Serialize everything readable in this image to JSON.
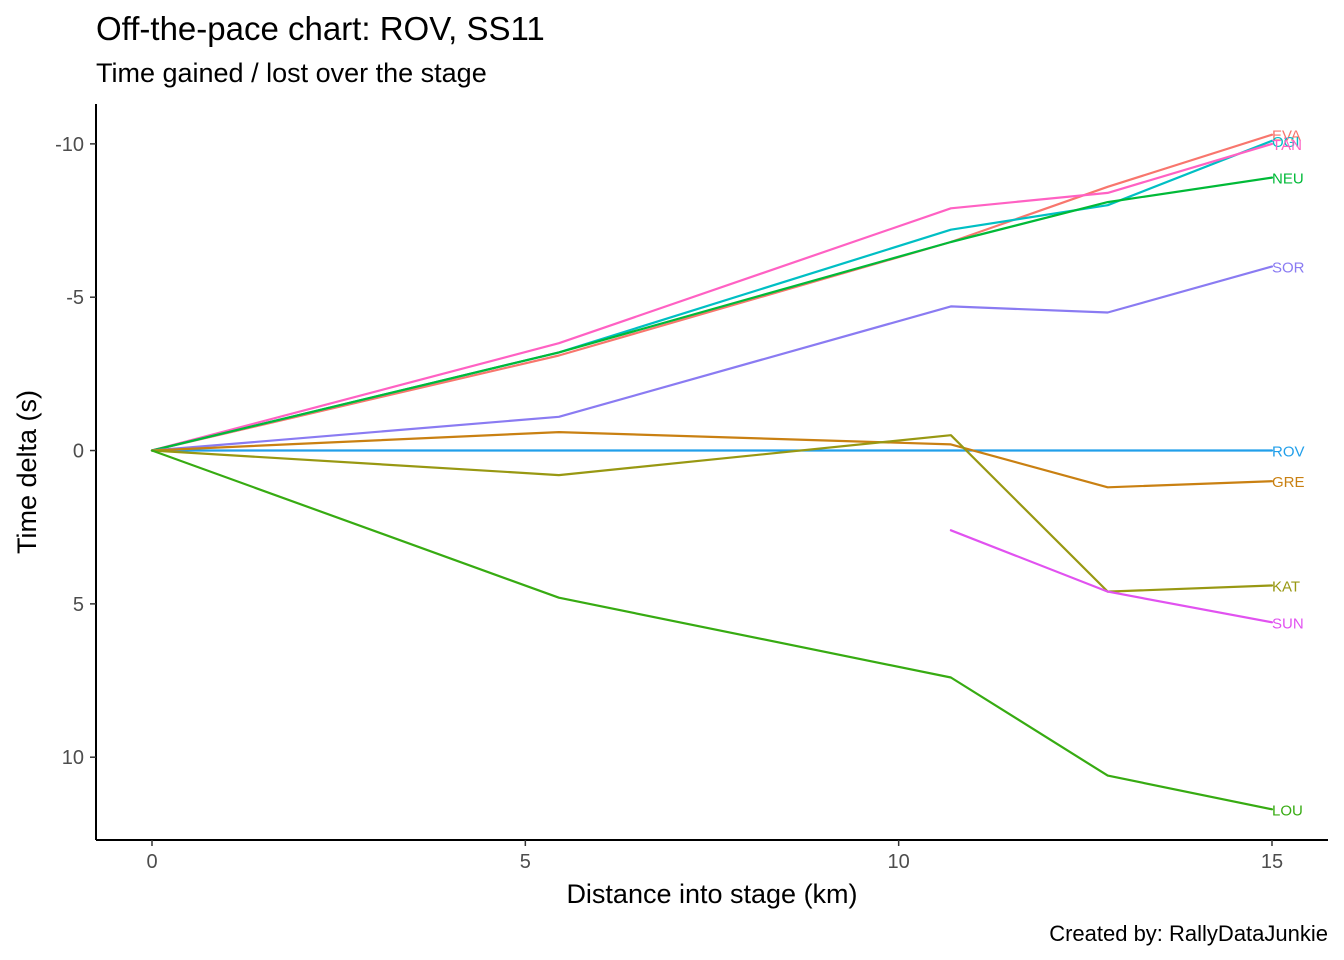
{
  "chart_data": {
    "type": "line",
    "title": "Off-the-pace chart: ROV, SS11",
    "subtitle": "Time gained / lost over the stage",
    "caption": "Created by: RallyDataJunkie",
    "xlabel": "Distance into stage (km)",
    "ylabel": "Time delta (s)",
    "xlim": [
      -0.75,
      15.75
    ],
    "ylim": [
      -11.3,
      12.7
    ],
    "y_reversed": true,
    "x_ticks": [
      0,
      5,
      10,
      15
    ],
    "y_ticks": [
      -10,
      -5,
      0,
      5,
      10
    ],
    "grid": false,
    "legend": "none (series labelled at line ends)",
    "series": [
      {
        "name": "EVA",
        "color": "#F8766D",
        "points": [
          [
            0,
            0
          ],
          [
            5.45,
            -3.1
          ],
          [
            10.7,
            -6.8
          ],
          [
            12.8,
            -8.6
          ],
          [
            15,
            -10.3
          ]
        ]
      },
      {
        "name": "OGI",
        "color": "#00BFC4",
        "points": [
          [
            0,
            0
          ],
          [
            5.45,
            -3.2
          ],
          [
            10.7,
            -7.2
          ],
          [
            12.8,
            -8.0
          ],
          [
            15,
            -10.1
          ]
        ]
      },
      {
        "name": "TÄN",
        "color": "#FF61C3",
        "points": [
          [
            0,
            0
          ],
          [
            5.45,
            -3.5
          ],
          [
            10.7,
            -7.9
          ],
          [
            12.8,
            -8.4
          ],
          [
            15,
            -10.0
          ]
        ]
      },
      {
        "name": "NEU",
        "color": "#00BA38",
        "points": [
          [
            0,
            0
          ],
          [
            5.45,
            -3.2
          ],
          [
            10.7,
            -6.8
          ],
          [
            12.8,
            -8.1
          ],
          [
            15,
            -8.9
          ]
        ]
      },
      {
        "name": "SOR",
        "color": "#8A7BF2",
        "points": [
          [
            0,
            0
          ],
          [
            5.45,
            -1.1
          ],
          [
            10.7,
            -4.7
          ],
          [
            12.8,
            -4.5
          ],
          [
            15,
            -6.0
          ]
        ]
      },
      {
        "name": "ROV",
        "color": "#219FEA",
        "points": [
          [
            0,
            0
          ],
          [
            5.45,
            0
          ],
          [
            10.7,
            0
          ],
          [
            12.8,
            0
          ],
          [
            15,
            0
          ]
        ]
      },
      {
        "name": "GRE",
        "color": "#C98012",
        "points": [
          [
            0,
            0
          ],
          [
            5.45,
            -0.6
          ],
          [
            10.7,
            -0.2
          ],
          [
            12.8,
            1.2
          ],
          [
            15,
            1.0
          ]
        ]
      },
      {
        "name": "KAT",
        "color": "#989812",
        "points": [
          [
            0,
            0
          ],
          [
            5.45,
            0.8
          ],
          [
            10.7,
            -0.5
          ],
          [
            12.8,
            4.6
          ],
          [
            15,
            4.4
          ]
        ]
      },
      {
        "name": "SUN",
        "color": "#E152F0",
        "points": [
          [
            10.7,
            2.6
          ],
          [
            12.8,
            4.6
          ],
          [
            15,
            5.6
          ]
        ]
      },
      {
        "name": "LOU",
        "color": "#37AB12",
        "points": [
          [
            0,
            0
          ],
          [
            5.45,
            4.8
          ],
          [
            10.7,
            7.4
          ],
          [
            12.8,
            10.6
          ],
          [
            15,
            11.7
          ]
        ]
      }
    ]
  }
}
